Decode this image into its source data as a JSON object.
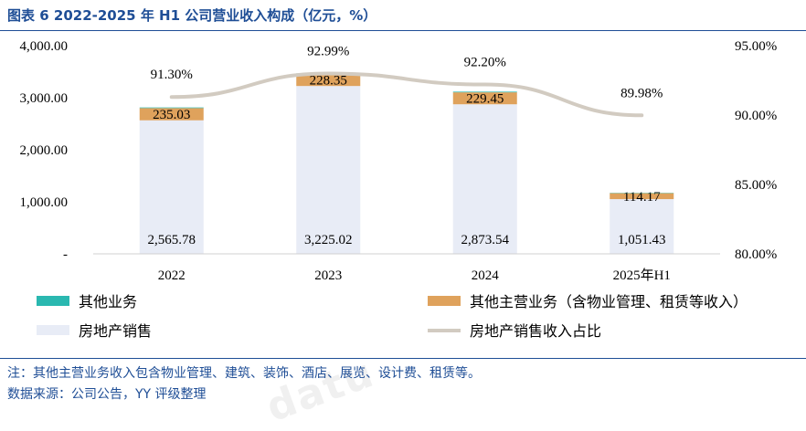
{
  "title": "图表 6 2022-2025 年 H1 公司营业收入构成（亿元，%）",
  "notes": {
    "note": "注：其他主营业务收入包含物业管理、建筑、装饰、酒店、展览、设计费、租赁等。",
    "source": "数据来源：公司公告，YY 评级整理"
  },
  "watermark": "datu",
  "chart_data": {
    "type": "bar",
    "stacked": true,
    "categories": [
      "2022",
      "2023",
      "2024",
      "2025年H1"
    ],
    "series": [
      {
        "name": "房地产销售",
        "type": "bar",
        "axis": "left",
        "color": "#e8ecf6",
        "values": [
          2565.78,
          3225.02,
          2873.54,
          1051.43
        ],
        "labels": [
          "2,565.78",
          "3,225.02",
          "2,873.54",
          "1,051.43"
        ]
      },
      {
        "name": "其他主营业务（含物业管理、租赁等收入）",
        "type": "bar",
        "axis": "left",
        "color": "#dfa25c",
        "values": [
          235.03,
          228.35,
          229.45,
          114.17
        ],
        "labels": [
          "235.03",
          "228.35",
          "229.45",
          "114.17"
        ]
      },
      {
        "name": "其他业务",
        "type": "bar",
        "axis": "left",
        "color": "#2ab8b0",
        "values": [
          12,
          14,
          13,
          6
        ],
        "labels": []
      },
      {
        "name": "房地产销售收入占比",
        "type": "line",
        "axis": "right",
        "color": "#d2cbc1",
        "values": [
          91.3,
          92.99,
          92.2,
          89.98
        ],
        "labels": [
          "91.30%",
          "92.99%",
          "92.20%",
          "89.98%"
        ]
      }
    ],
    "y_left": {
      "ylim": [
        0,
        4000
      ],
      "ticks": [
        0,
        1000,
        2000,
        3000,
        4000
      ],
      "tick_labels": [
        "-",
        "1,000.00",
        "2,000.00",
        "3,000.00",
        "4,000.00"
      ]
    },
    "y_right": {
      "ylim": [
        80,
        95
      ],
      "ticks": [
        80,
        85,
        90,
        95
      ],
      "tick_labels": [
        "80.00%",
        "85.00%",
        "90.00%",
        "95.00%"
      ]
    },
    "legend_order": [
      2,
      1,
      0,
      3
    ],
    "legend_placement": "bottom",
    "grid": false
  }
}
